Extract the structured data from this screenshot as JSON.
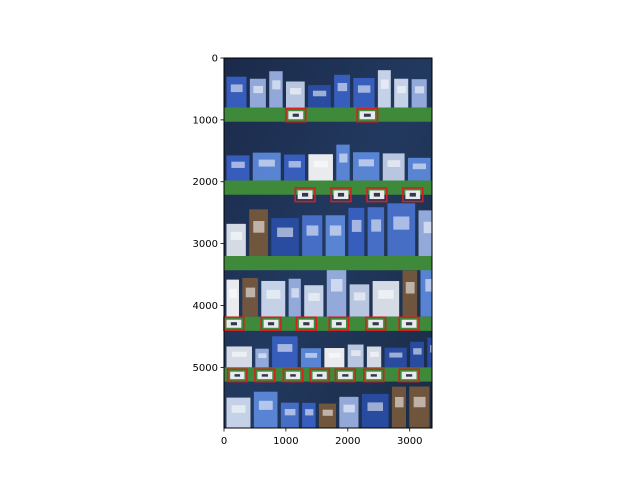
{
  "chart_data": {
    "type": "image",
    "title": "",
    "xlabel": "",
    "ylabel": "",
    "xlim": [
      0,
      3360
    ],
    "ylim": [
      5980,
      0
    ],
    "xticks": [
      0,
      1000,
      2000,
      3000
    ],
    "yticks": [
      0,
      1000,
      2000,
      3000,
      4000,
      5000
    ],
    "image": {
      "description": "retail shelf photo with milk/dairy product packages on six shelves, blue-tinted",
      "width": 3360,
      "height": 5980
    },
    "boxes_color": "#d42020",
    "detection_boxes": [
      {
        "label": "price-tag",
        "x": [
          1000,
          1320
        ],
        "y": [
          820,
          1030
        ]
      },
      {
        "label": "price-tag",
        "x": [
          2150,
          2480
        ],
        "y": [
          820,
          1030
        ]
      },
      {
        "label": "price-tag",
        "x": [
          1150,
          1470
        ],
        "y": [
          2100,
          2320
        ]
      },
      {
        "label": "price-tag",
        "x": [
          1730,
          2050
        ],
        "y": [
          2100,
          2320
        ]
      },
      {
        "label": "price-tag",
        "x": [
          2310,
          2630
        ],
        "y": [
          2100,
          2320
        ]
      },
      {
        "label": "price-tag",
        "x": [
          2890,
          3210
        ],
        "y": [
          2100,
          2320
        ]
      },
      {
        "label": "price-tag",
        "x": [
          0,
          320
        ],
        "y": [
          4190,
          4400
        ]
      },
      {
        "label": "price-tag",
        "x": [
          600,
          920
        ],
        "y": [
          4190,
          4400
        ]
      },
      {
        "label": "price-tag",
        "x": [
          1170,
          1490
        ],
        "y": [
          4190,
          4400
        ]
      },
      {
        "label": "price-tag",
        "x": [
          1700,
          2010
        ],
        "y": [
          4190,
          4400
        ]
      },
      {
        "label": "price-tag",
        "x": [
          2290,
          2610
        ],
        "y": [
          4190,
          4400
        ]
      },
      {
        "label": "price-tag",
        "x": [
          2830,
          3150
        ],
        "y": [
          4190,
          4400
        ]
      },
      {
        "label": "price-tag",
        "x": [
          60,
          370
        ],
        "y": [
          5030,
          5230
        ]
      },
      {
        "label": "price-tag",
        "x": [
          500,
          820
        ],
        "y": [
          5030,
          5230
        ]
      },
      {
        "label": "price-tag",
        "x": [
          960,
          1270
        ],
        "y": [
          5030,
          5230
        ]
      },
      {
        "label": "price-tag",
        "x": [
          1390,
          1700
        ],
        "y": [
          5030,
          5230
        ]
      },
      {
        "label": "price-tag",
        "x": [
          1800,
          2120
        ],
        "y": [
          5030,
          5230
        ]
      },
      {
        "label": "price-tag",
        "x": [
          2260,
          2580
        ],
        "y": [
          5030,
          5230
        ]
      },
      {
        "label": "price-tag",
        "x": [
          2830,
          3150
        ],
        "y": [
          5030,
          5230
        ]
      }
    ]
  }
}
